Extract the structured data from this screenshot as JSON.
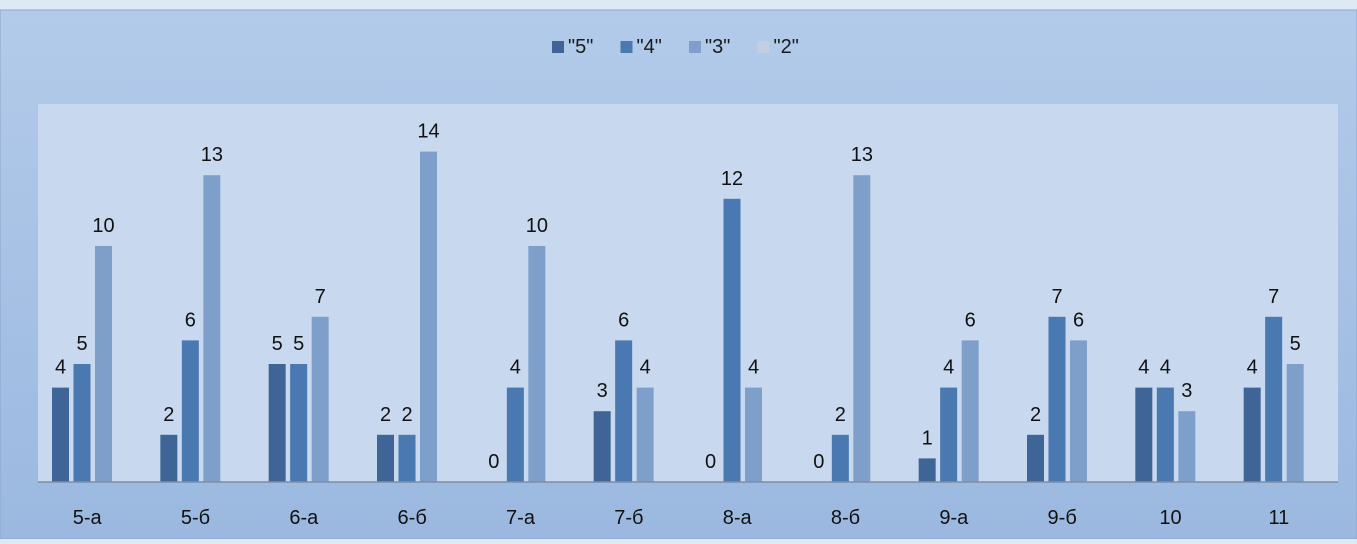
{
  "chart_data": {
    "type": "bar",
    "title": "",
    "xlabel": "",
    "ylabel": "",
    "categories": [
      "5-а",
      "5-б",
      "6-а",
      "6-б",
      "7-а",
      "7-б",
      "8-а",
      "8-б",
      "9-а",
      "9-б",
      "10",
      "11"
    ],
    "series": [
      {
        "name": "\"5\"",
        "color": "#3e6595",
        "values": [
          4,
          2,
          5,
          2,
          0,
          3,
          0,
          0,
          1,
          2,
          4,
          4
        ]
      },
      {
        "name": "\"4\"",
        "color": "#4a78b0",
        "values": [
          5,
          6,
          5,
          2,
          4,
          6,
          12,
          2,
          4,
          7,
          4,
          7
        ]
      },
      {
        "name": "\"3\"",
        "color": "#7f9fcb",
        "values": [
          10,
          13,
          7,
          14,
          10,
          4,
          4,
          13,
          6,
          6,
          3,
          5
        ]
      },
      {
        "name": "\"2\"",
        "color": "#c3cfe0",
        "values": [
          null,
          null,
          null,
          null,
          null,
          null,
          null,
          null,
          null,
          null,
          null,
          null
        ]
      }
    ],
    "ylim": [
      0,
      15
    ],
    "grid": false,
    "legend_position": "top",
    "data_labels": true,
    "background_outer": "#a8c2e6",
    "background_plot": "#c8d9ef",
    "axis_color": "#7f8ea3"
  }
}
